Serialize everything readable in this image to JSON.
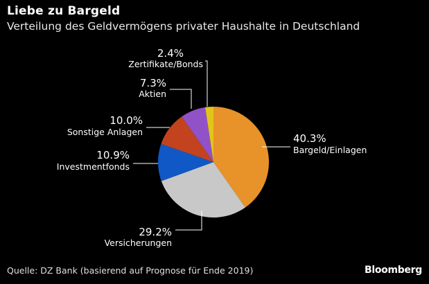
{
  "header": {
    "title": "Liebe zu Bargeld",
    "subtitle": "Verteilung des Geldvermögens privater Haushalte in Deutschland"
  },
  "footer": {
    "source": "Quelle: DZ Bank (basierend auf Prognose für Ende 2019)",
    "brand": "Bloomberg"
  },
  "chart_data": {
    "type": "pie",
    "title": "Liebe zu Bargeld",
    "subtitle": "Verteilung des Geldvermögens privater Haushalte in Deutschland",
    "slices": [
      {
        "label": "Bargeld/Einlagen",
        "value": 40.3,
        "display": "40.3%",
        "color": "#e8922a"
      },
      {
        "label": "Versicherungen",
        "value": 29.2,
        "display": "29.2%",
        "color": "#c8c8c8"
      },
      {
        "label": "Investmentfonds",
        "value": 10.9,
        "display": "10.9%",
        "color": "#1158c7"
      },
      {
        "label": "Sonstige Anlagen",
        "value": 10.0,
        "display": "10.0%",
        "color": "#c2431e"
      },
      {
        "label": "Aktien",
        "value": 7.3,
        "display": "7.3%",
        "color": "#9152c8"
      },
      {
        "label": "Zertifikate/Bonds",
        "value": 2.4,
        "display": "2.4%",
        "color": "#e2c51a"
      }
    ],
    "start": "12 o'clock",
    "direction": "clockwise",
    "legend": "none (direct labels with leader lines)"
  }
}
